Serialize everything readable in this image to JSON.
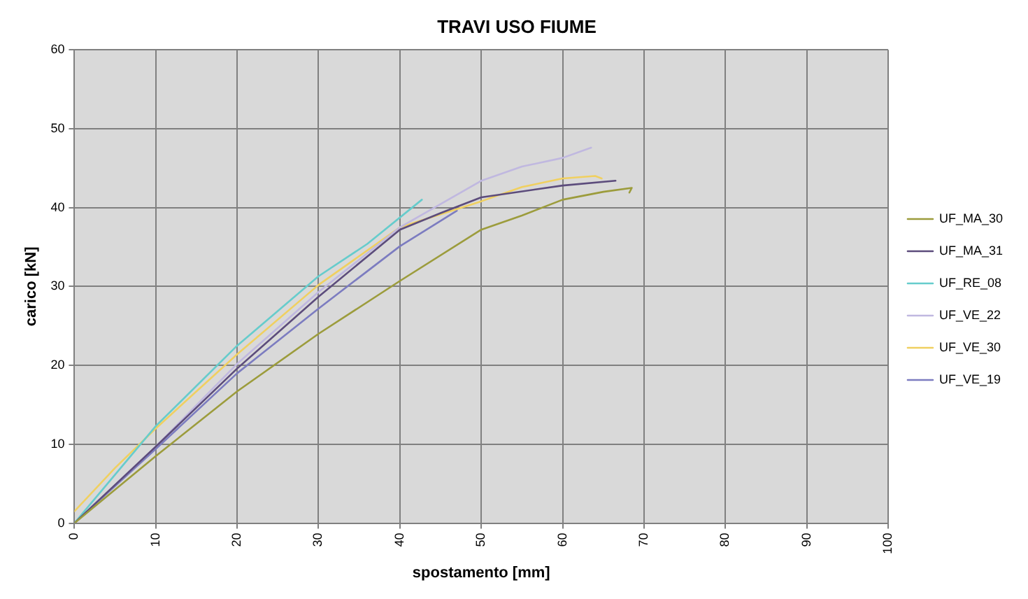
{
  "chart_data": {
    "type": "line",
    "title": "TRAVI USO FIUME",
    "xlabel": "spostamento [mm]",
    "ylabel": "carico [kN]",
    "xlim": [
      0,
      100
    ],
    "xticks": [
      0,
      10,
      20,
      30,
      40,
      50,
      60,
      70,
      80,
      90,
      100
    ],
    "ylim": [
      0,
      60
    ],
    "yticks": [
      0,
      10,
      20,
      30,
      40,
      50,
      60
    ],
    "grid": true,
    "legend": "right",
    "marker": "none",
    "line_style": "solid",
    "series": [
      {
        "name": "UF_MA_30",
        "color": "#9c9c3c",
        "x": [
          0,
          10,
          20,
          30,
          40,
          50,
          55,
          60,
          65,
          68.5,
          68.2
        ],
        "values": [
          0,
          8.5,
          16.7,
          24,
          30.7,
          37.2,
          39,
          41,
          42,
          42.5,
          41.9
        ]
      },
      {
        "name": "UF_MA_31",
        "color": "#5c4c7c",
        "x": [
          0,
          10,
          20,
          30,
          40,
          45,
          50,
          60,
          66.5
        ],
        "values": [
          0,
          9.7,
          19.6,
          28.7,
          37.2,
          39.3,
          41.3,
          42.8,
          43.4
        ]
      },
      {
        "name": "UF_RE_08",
        "color": "#66cccc",
        "x": [
          0,
          10,
          20,
          30,
          36,
          42.7
        ],
        "values": [
          0,
          12.3,
          22.5,
          31.3,
          35.4,
          41
        ]
      },
      {
        "name": "UF_VE_22",
        "color": "#c0b8e0",
        "x": [
          0,
          10,
          20,
          30,
          40,
          50,
          55,
          60,
          63.5
        ],
        "values": [
          0,
          9.7,
          20.2,
          29.3,
          37.5,
          43.4,
          45.2,
          46.3,
          47.6
        ]
      },
      {
        "name": "UF_VE_30",
        "color": "#f0d060",
        "x": [
          0,
          5,
          10,
          20,
          30,
          40,
          50,
          55,
          60,
          64,
          64.8
        ],
        "values": [
          1.5,
          7,
          12,
          21.4,
          30.2,
          37.5,
          40.8,
          42.6,
          43.7,
          44,
          43.7
        ]
      },
      {
        "name": "UF_VE_19",
        "color": "#7c7cc0",
        "x": [
          0,
          10,
          20,
          30,
          40,
          47
        ],
        "values": [
          0,
          9.4,
          19,
          27.2,
          35.1,
          39.6
        ]
      }
    ]
  }
}
